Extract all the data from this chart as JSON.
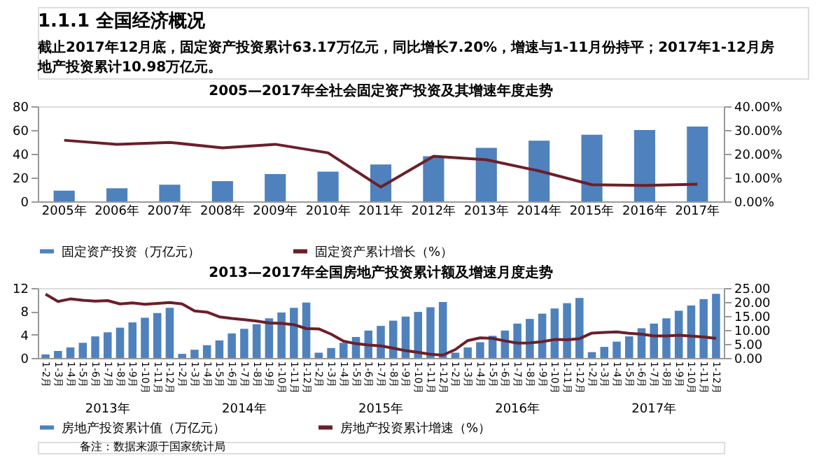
{
  "chart_data": [
    {
      "type": "bar",
      "title": "2005—2017年全社会固定资产投资及其增速年度走势",
      "annotations": [
        "1.1.1 全国经济概况",
        "截止2017年12月底，固定资产投资累计63.17万亿元，同比增长7.20%，增速与1-11月份持平；2017年1-12月房地产投资累计10.98万亿元。"
      ],
      "categories": [
        "2005年",
        "2006年",
        "2007年",
        "2008年",
        "2009年",
        "2010年",
        "2011年",
        "2012年",
        "2013年",
        "2014年",
        "2015年",
        "2016年",
        "2017年"
      ],
      "series": [
        {
          "name": "固定资产投资（万亿元）",
          "color": "#4f81bd",
          "values": [
            9,
            11,
            14,
            17,
            23,
            25,
            31,
            38,
            45,
            51,
            56,
            60,
            63
          ]
        },
        {
          "name": "固定资产累计增长（%）",
          "type": "line",
          "axis": "y2",
          "color": "#6b1f2a",
          "values": [
            25.7,
            24.0,
            24.8,
            22.5,
            24.0,
            20.4,
            6.0,
            19.0,
            17.5,
            12.8,
            7.0,
            6.7,
            7.2
          ]
        }
      ],
      "ylim": [
        0,
        80
      ],
      "yticks": [
        0,
        20,
        40,
        60,
        80
      ],
      "y2lim": [
        0,
        40
      ],
      "y2ticks": [
        {
          "value": 0,
          "label": "0.00%"
        },
        {
          "value": 10,
          "label": "10.00%"
        },
        {
          "value": 20,
          "label": "20.00%"
        },
        {
          "value": 30,
          "label": "30.00%"
        },
        {
          "value": 40,
          "label": "40.00%"
        }
      ],
      "legend": "bottom",
      "grid": false
    },
    {
      "type": "bar",
      "title": "2013—2017年全国房地产投资累计额及增速月度走势",
      "annotations": [
        "2013年",
        "2014年",
        "2015年",
        "2016年",
        "2017年",
        "备注：数据来源于国家统计局"
      ],
      "categories": [
        "1-2月",
        "1-3月",
        "1-4月",
        "1-5月",
        "1-6月",
        "1-7月",
        "1-8月",
        "1-9月",
        "1-10月",
        "1-11月",
        "1-12月",
        "1-2月",
        "1-3月",
        "1-4月",
        "1-5月",
        "1-6月",
        "1-7月",
        "1-8月",
        "1-9月",
        "1-10月",
        "1-11月",
        "1-12月",
        "1-2月",
        "1-3月",
        "1-4月",
        "1-5月",
        "1-6月",
        "1-7月",
        "1-8月",
        "1-9月",
        "1-10月",
        "1-11月",
        "1-12月",
        "1-2月",
        "1-3月",
        "1-4月",
        "1-5月",
        "1-6月",
        "1-7月",
        "1-8月",
        "1-9月",
        "1-10月",
        "1-11月",
        "1-12月",
        "1-2月",
        "1-3月",
        "1-4月",
        "1-5月",
        "1-6月",
        "1-7月",
        "1-8月",
        "1-9月",
        "1-10月",
        "1-11月",
        "1-12月"
      ],
      "series": [
        {
          "name": "房地产投资累计值（万亿元）",
          "color": "#4f81bd",
          "values": [
            0.6,
            1.2,
            1.8,
            2.6,
            3.7,
            4.4,
            5.2,
            6.1,
            6.9,
            7.7,
            8.6,
            0.7,
            1.4,
            2.2,
            3.0,
            4.2,
            5.0,
            5.8,
            6.8,
            7.8,
            8.6,
            9.5,
            0.9,
            1.7,
            2.6,
            3.6,
            4.7,
            5.5,
            6.4,
            7.1,
            7.9,
            8.7,
            9.6,
            0.9,
            1.8,
            2.7,
            3.8,
            4.7,
            5.9,
            6.7,
            7.6,
            8.5,
            9.4,
            10.3,
            1.0,
            1.9,
            2.8,
            3.7,
            5.1,
            5.9,
            6.8,
            8.1,
            9.0,
            10.1,
            11.0
          ]
        },
        {
          "name": "房地产投资累计增速（%）",
          "type": "line",
          "axis": "y2",
          "color": "#6b1f2a",
          "values": [
            22.8,
            20.2,
            21.1,
            20.6,
            20.3,
            20.5,
            19.3,
            19.7,
            19.2,
            19.5,
            19.8,
            19.3,
            16.8,
            16.4,
            14.7,
            14.1,
            13.7,
            13.2,
            12.5,
            12.4,
            11.9,
            10.5,
            10.4,
            8.5,
            6.0,
            5.1,
            4.6,
            4.3,
            3.5,
            2.6,
            2.0,
            1.3,
            1.0,
            3.0,
            6.2,
            7.2,
            7.0,
            6.1,
            5.3,
            5.4,
            5.8,
            6.6,
            6.5,
            6.9,
            8.9,
            9.1,
            9.3,
            8.8,
            8.5,
            7.9,
            7.9,
            8.1,
            7.8,
            7.5,
            7.0
          ]
        }
      ],
      "ylim": [
        0,
        12
      ],
      "yticks": [
        0,
        4,
        8,
        12
      ],
      "y2lim": [
        0,
        25
      ],
      "y2ticks": [
        {
          "value": 0,
          "label": "0.00"
        },
        {
          "value": 5,
          "label": "5.00"
        },
        {
          "value": 10,
          "label": "10.00"
        },
        {
          "value": 15,
          "label": "15.00"
        },
        {
          "value": 20,
          "label": "20.00"
        },
        {
          "value": 25,
          "label": "25.00"
        }
      ],
      "legend": "bottom",
      "grid": false
    }
  ]
}
